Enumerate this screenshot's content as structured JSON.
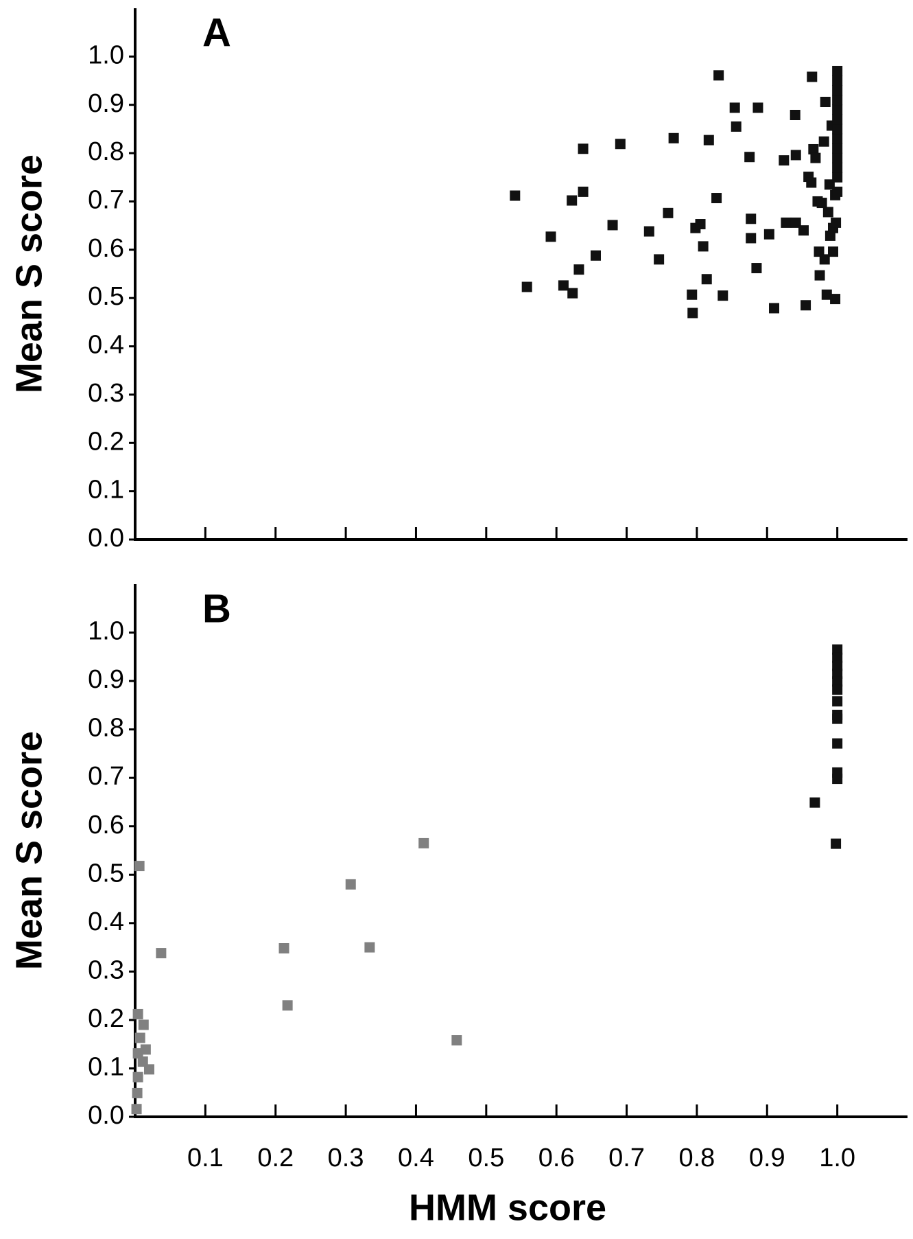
{
  "chart_data": [
    {
      "type": "scatter",
      "title": "A",
      "y_label": "Mean S score",
      "xlim": [
        0,
        1.1
      ],
      "ylim": [
        0,
        1.1
      ],
      "xticks": [
        0.1,
        0.2,
        0.3,
        0.4,
        0.5,
        0.6,
        0.7,
        0.8,
        0.9,
        1.0
      ],
      "xtick_labels": false,
      "yticks": [
        {
          "value": 0,
          "label": "0.0"
        },
        0.1,
        0.2,
        0.3,
        0.4,
        0.5,
        0.6,
        0.7,
        0.8,
        0.9,
        {
          "value": 1,
          "label": "1.0"
        }
      ],
      "series": [
        {
          "color": "#111111",
          "x": [
            0.541,
            0.558,
            0.592,
            0.61,
            0.623,
            0.622,
            0.632,
            0.638,
            0.638,
            0.656,
            0.68,
            0.691,
            0.732,
            0.746,
            0.759,
            0.767,
            0.793,
            0.794,
            0.798,
            0.805,
            0.809,
            0.814,
            0.817,
            0.828,
            0.831,
            0.837,
            0.854,
            0.856,
            0.875,
            0.877,
            0.877,
            0.885,
            0.887,
            0.903,
            0.91,
            0.924,
            0.927,
            0.941,
            0.94,
            0.941,
            0.952,
            0.955,
            0.959,
            0.963,
            0.964,
            0.966,
            0.969,
            0.972,
            0.974,
            0.975,
            0.978,
            0.981,
            0.982,
            0.983,
            0.985,
            0.987,
            0.989,
            0.99,
            0.992,
            0.994,
            0.997,
            0.994,
            0.998,
            0.997,
            1.0,
            1.0,
            1.0,
            1.0,
            1.0,
            1.0,
            1.0,
            1.0,
            1.0,
            1.0,
            1.0,
            1.0,
            1.0
          ],
          "y": [
            0.712,
            0.523,
            0.627,
            0.526,
            0.51,
            0.702,
            0.559,
            0.72,
            0.809,
            0.588,
            0.651,
            0.819,
            0.638,
            0.58,
            0.676,
            0.831,
            0.507,
            0.469,
            0.645,
            0.653,
            0.607,
            0.539,
            0.827,
            0.707,
            0.961,
            0.505,
            0.894,
            0.855,
            0.792,
            0.664,
            0.624,
            0.562,
            0.894,
            0.632,
            0.479,
            0.785,
            0.656,
            0.656,
            0.879,
            0.796,
            0.64,
            0.485,
            0.751,
            0.739,
            0.958,
            0.808,
            0.79,
            0.7,
            0.596,
            0.547,
            0.697,
            0.824,
            0.58,
            0.906,
            0.507,
            0.678,
            0.735,
            0.629,
            0.857,
            0.596,
            0.498,
            0.645,
            0.656,
            0.713,
            0.72,
            0.75,
            0.77,
            0.79,
            0.81,
            0.83,
            0.85,
            0.87,
            0.89,
            0.91,
            0.93,
            0.95,
            0.97
          ]
        }
      ]
    },
    {
      "type": "scatter",
      "title": "B",
      "y_label": "Mean S score",
      "x_label": "HMM score",
      "xlim": [
        0,
        1.1
      ],
      "ylim": [
        0,
        1.1
      ],
      "xticks": [
        0.1,
        0.2,
        0.3,
        0.4,
        0.5,
        0.6,
        0.7,
        0.8,
        0.9,
        {
          "value": 1,
          "label": "1.0"
        }
      ],
      "xtick_labels": true,
      "yticks": [
        {
          "value": 0,
          "label": "0.0"
        },
        0.1,
        0.2,
        0.3,
        0.4,
        0.5,
        0.6,
        0.7,
        0.8,
        0.9,
        {
          "value": 1,
          "label": "1.0"
        }
      ],
      "series": [
        {
          "color": "#111111",
          "x": [
            1.0,
            1.0,
            1.0,
            1.0,
            1.0,
            1.0,
            1.0,
            1.0,
            1.0,
            1.0,
            1.0,
            1.0,
            0.968,
            0.998
          ],
          "y": [
            0.965,
            0.948,
            0.931,
            0.915,
            0.899,
            0.882,
            0.858,
            0.83,
            0.822,
            0.771,
            0.711,
            0.698,
            0.649,
            0.564
          ]
        },
        {
          "color": "#808080",
          "x": [
            0.006,
            0.037,
            0.212,
            0.217,
            0.307,
            0.334,
            0.411,
            0.458,
            0.012,
            0.004,
            0.015,
            0.02,
            0.011,
            0.007,
            0.004,
            0.003,
            0.002,
            0.004
          ],
          "y": [
            0.518,
            0.338,
            0.348,
            0.23,
            0.48,
            0.35,
            0.565,
            0.158,
            0.19,
            0.212,
            0.139,
            0.098,
            0.114,
            0.163,
            0.082,
            0.049,
            0.016,
            0.131
          ]
        }
      ]
    }
  ]
}
